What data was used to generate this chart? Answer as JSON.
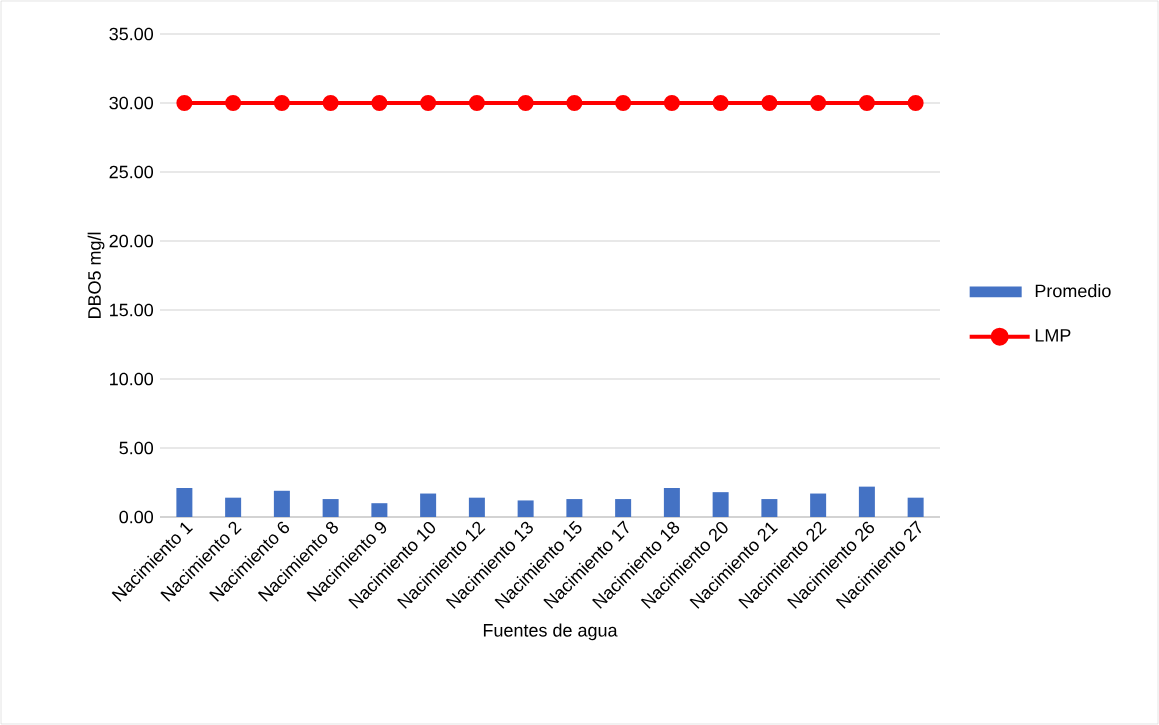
{
  "chart_data": {
    "type": "bar",
    "xlabel": "Fuentes de agua",
    "ylabel": "DBO5 mg/l",
    "categories": [
      "Nacimiento 1",
      "Nacimiento 2",
      "Nacimiento 6",
      "Nacimiento 8",
      "Nacimiento 9",
      "Nacimiento 10",
      "Nacimiento 12",
      "Nacimiento 13",
      "Nacimiento 15",
      "Nacimiento 17",
      "Nacimiento 18",
      "Nacimiento 20",
      "Nacimiento 21",
      "Nacimiento 22",
      "Nacimiento 26",
      "Nacimiento 27"
    ],
    "series": [
      {
        "name": "Promedio",
        "color": "#4472c4",
        "values": [
          2.1,
          1.4,
          1.9,
          1.3,
          1.0,
          1.7,
          1.4,
          1.2,
          1.3,
          1.3,
          2.1,
          1.8,
          1.3,
          1.7,
          2.2,
          1.4
        ]
      },
      {
        "name": "LMP",
        "type": "line",
        "color": "#ff0000",
        "marker": "circle",
        "values": [
          30,
          30,
          30,
          30,
          30,
          30,
          30,
          30,
          30,
          30,
          30,
          30,
          30,
          30,
          30,
          30
        ]
      }
    ],
    "ylim": [
      0,
      35
    ],
    "yticks": [
      {
        "value": 0,
        "label": "0.00"
      },
      {
        "value": 5,
        "label": "5.00"
      },
      {
        "value": 10,
        "label": "10.00"
      },
      {
        "value": 15,
        "label": "15.00"
      },
      {
        "value": 20,
        "label": "20.00"
      },
      {
        "value": 25,
        "label": "25.00"
      },
      {
        "value": 30,
        "label": "30.00"
      },
      {
        "value": 35,
        "label": "35.00"
      }
    ],
    "grid": "y",
    "legend": "right"
  }
}
